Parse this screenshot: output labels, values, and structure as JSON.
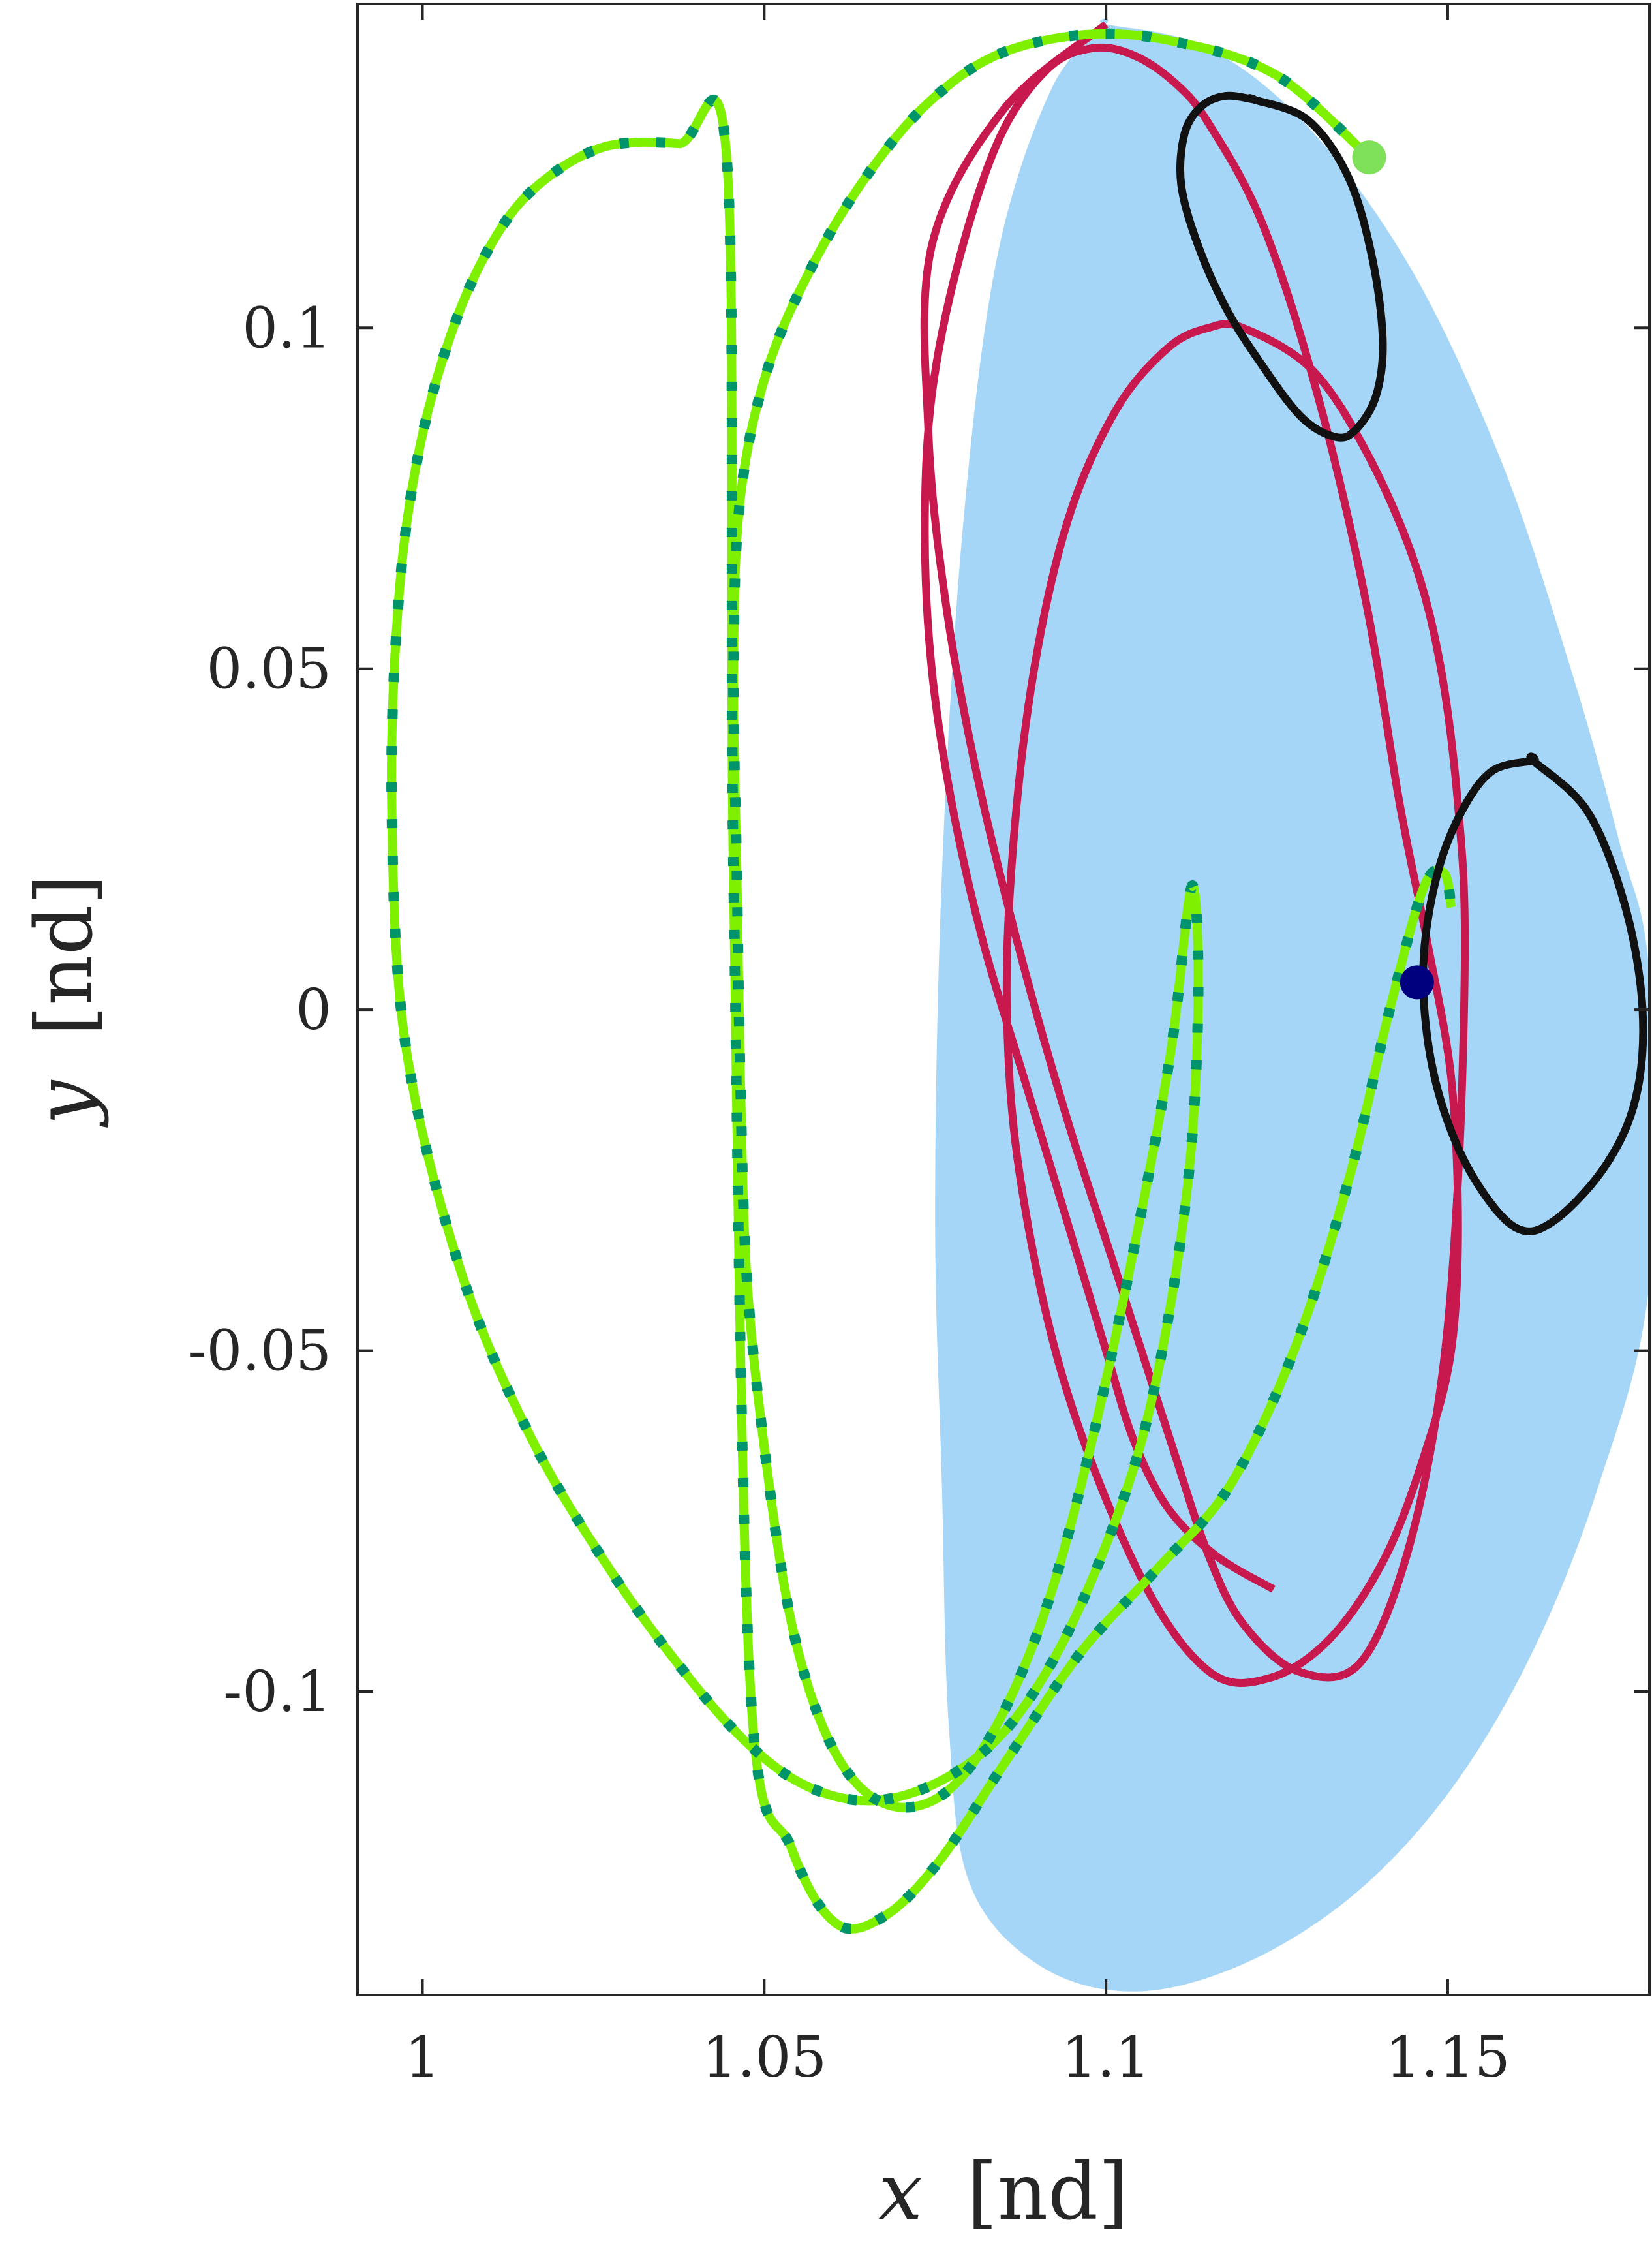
{
  "chart_data": {
    "type": "line",
    "title": "",
    "xlabel_var": "x",
    "xlabel_unit": "[nd]",
    "ylabel_var": "y",
    "ylabel_unit": "[nd]",
    "xlim": [
      0.9905,
      1.1795
    ],
    "ylim": [
      -0.1445,
      0.1475
    ],
    "xticks": [
      1,
      1.05,
      1.1,
      1.15
    ],
    "xtick_labels": [
      "1",
      "1.05",
      "1.1",
      "1.15"
    ],
    "yticks": [
      -0.1,
      -0.05,
      0,
      0.05,
      0.1
    ],
    "ytick_labels": [
      "-0.1",
      "-0.05",
      "0",
      "0.05",
      "0.1"
    ],
    "grid": false,
    "legend": "none",
    "colors": {
      "band": "#a6d6f7",
      "reference_orbit": "#c8194f",
      "transfer": "#7ff000",
      "transfer_dashed": "#00946a",
      "small_orbit": "#111111",
      "start_marker": "#00007f",
      "end_marker": "#7fe05a"
    },
    "series": [
      {
        "kind": "band",
        "x": [
          1.1,
          1.115,
          1.13,
          1.145,
          1.158,
          1.168,
          1.175,
          1.1795,
          1.1795,
          1.172,
          1.162,
          1.15,
          1.136,
          1.12,
          1.104,
          1.09,
          1.08,
          1.077,
          1.076,
          1.075,
          1.076,
          1.079,
          1.084,
          1.092,
          1.1
        ],
        "y": [
          0.1445,
          0.141,
          0.129,
          0.108,
          0.08,
          0.05,
          0.025,
          0.005,
          -0.04,
          -0.07,
          -0.095,
          -0.115,
          -0.13,
          -0.14,
          -0.144,
          -0.14,
          -0.128,
          -0.105,
          -0.07,
          -0.03,
          0.02,
          0.07,
          0.11,
          0.135,
          0.1445
        ]
      },
      {
        "kind": "curve",
        "style": "reference",
        "x": [
          1.1,
          1.085,
          1.0745,
          1.074,
          1.0765,
          1.081,
          1.087,
          1.094,
          1.102,
          1.11,
          1.115,
          1.12,
          1.128,
          1.137,
          1.144,
          1.149,
          1.1515,
          1.1525,
          1.1515,
          1.149,
          1.145,
          1.138,
          1.13,
          1.12,
          1.115,
          1.109,
          1.1015,
          1.0945,
          1.0895,
          1.0865,
          1.0855,
          1.0875,
          1.094,
          1.105,
          1.115,
          1.124,
          1.133,
          1.141,
          1.147,
          1.1505,
          1.1515,
          1.1505,
          1.147,
          1.143,
          1.138,
          1.131,
          1.123,
          1.115,
          1.11,
          1.104,
          1.098,
          1.0915,
          1.0845,
          1.0785,
          1.0745,
          1.0735,
          1.0745,
          1.0775,
          1.082,
          1.088,
          1.094,
          1.1,
          1.104,
          1.109,
          1.116,
          1.1245
        ],
        "y": [
          0.1445,
          0.132,
          0.112,
          0.085,
          0.06,
          0.035,
          0.01,
          -0.015,
          -0.04,
          -0.065,
          -0.08,
          -0.09,
          -0.097,
          -0.096,
          -0.08,
          -0.055,
          -0.025,
          0.01,
          0.03,
          0.05,
          0.066,
          0.082,
          0.094,
          0.1,
          0.1,
          0.097,
          0.088,
          0.072,
          0.05,
          0.025,
          0.0,
          -0.025,
          -0.055,
          -0.083,
          -0.097,
          -0.098,
          -0.092,
          -0.08,
          -0.064,
          -0.05,
          -0.032,
          -0.01,
          0.01,
          0.03,
          0.06,
          0.09,
          0.115,
          0.13,
          0.136,
          0.14,
          0.141,
          0.138,
          0.128,
          0.11,
          0.09,
          0.07,
          0.05,
          0.03,
          0.01,
          -0.01,
          -0.03,
          -0.05,
          -0.063,
          -0.073,
          -0.08,
          -0.085
        ]
      },
      {
        "kind": "curve",
        "style": "transfer",
        "x": [
          1.1385,
          1.125,
          1.11,
          1.097,
          1.084,
          1.074,
          1.0655,
          1.0575,
          1.0505,
          1.0465,
          1.0455,
          1.046,
          1.0465,
          1.0475,
          1.0505,
          1.054,
          1.0585,
          1.064,
          1.0705,
          1.0775,
          1.0845,
          1.0915,
          1.098,
          1.1045,
          1.1095,
          1.1125,
          1.1135,
          1.1125,
          1.1095,
          1.105,
          1.099,
          1.0925,
          1.085,
          1.076,
          1.066,
          1.0565,
          1.048,
          1.039,
          1.028,
          1.016,
          1.0055,
          0.9975,
          0.9955,
          0.9965,
          0.9995,
          1.0045,
          1.0105,
          1.017,
          1.0265,
          1.0375,
          1.0445,
          1.0455,
          1.048,
          1.054,
          1.0605,
          1.0675,
          1.0755,
          1.0855,
          1.0965,
          1.1075,
          1.118,
          1.1275,
          1.1355,
          1.1415,
          1.1465,
          1.1495,
          1.1505
        ],
        "y": [
          0.125,
          0.137,
          0.142,
          0.143,
          0.14,
          0.133,
          0.123,
          0.11,
          0.094,
          0.075,
          0.05,
          0.02,
          -0.01,
          -0.04,
          -0.068,
          -0.09,
          -0.105,
          -0.114,
          -0.117,
          -0.114,
          -0.104,
          -0.087,
          -0.063,
          -0.033,
          -0.006,
          0.018,
          0.004,
          -0.02,
          -0.043,
          -0.064,
          -0.081,
          -0.095,
          -0.106,
          -0.113,
          -0.116,
          -0.114,
          -0.108,
          -0.098,
          -0.083,
          -0.063,
          -0.038,
          -0.005,
          0.03,
          0.06,
          0.082,
          0.1,
          0.113,
          0.121,
          0.1265,
          0.127,
          0.125,
          0.02,
          -0.1,
          -0.123,
          -0.134,
          -0.133,
          -0.125,
          -0.11,
          -0.094,
          -0.082,
          -0.07,
          -0.05,
          -0.025,
          0.0,
          0.018,
          0.02,
          0.015
        ]
      },
      {
        "kind": "curve",
        "style": "small_orbit",
        "x": [
          1.1215,
          1.1295,
          1.1355,
          1.139,
          1.1405,
          1.1395,
          1.1365,
          1.1335,
          1.1285,
          1.1225,
          1.1175,
          1.1135,
          1.111,
          1.1115,
          1.114,
          1.1175,
          1.1215
        ],
        "y": [
          0.1335,
          0.1305,
          0.122,
          0.11,
          0.098,
          0.09,
          0.085,
          0.084,
          0.087,
          0.095,
          0.103,
          0.112,
          0.121,
          0.1285,
          0.1325,
          0.134,
          0.1335
        ]
      },
      {
        "kind": "curve",
        "style": "small_orbit",
        "x": [
          1.1625,
          1.1705,
          1.176,
          1.1785,
          1.1775,
          1.173,
          1.1655,
          1.16,
          1.154,
          1.1495,
          1.147,
          1.1465,
          1.1485,
          1.152,
          1.1565,
          1.1625
        ],
        "y": [
          0.0365,
          0.029,
          0.015,
          0.0,
          -0.013,
          -0.023,
          -0.031,
          -0.032,
          -0.025,
          -0.015,
          -0.004,
          0.008,
          0.02,
          0.029,
          0.035,
          0.0365
        ]
      },
      {
        "kind": "marker",
        "style": "start",
        "x": [
          1.1455
        ],
        "y": [
          0.004
        ]
      },
      {
        "kind": "marker",
        "style": "end",
        "x": [
          1.1385
        ],
        "y": [
          0.125
        ]
      }
    ]
  }
}
